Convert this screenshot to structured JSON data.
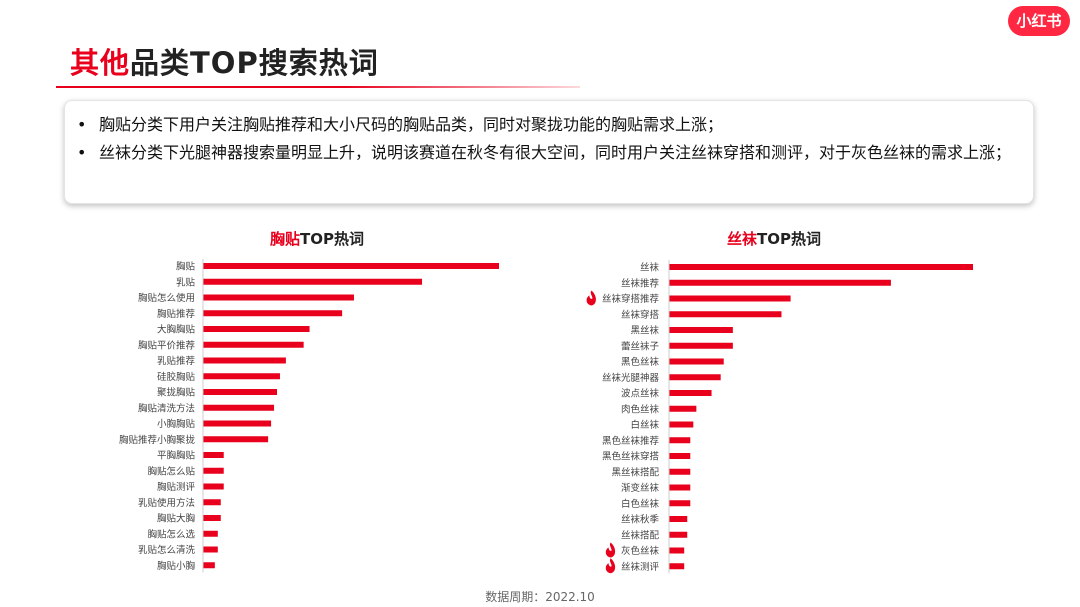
{
  "header": {
    "title_highlight": "其他",
    "title_rest": "品类TOP搜索热词",
    "logo_text": "小红书"
  },
  "summary": {
    "bullets": [
      "胸贴分类下用户关注胸贴推荐和大小尺码的胸贴品类，同时对聚拢功能的胸贴需求上涨；",
      "丝袜分类下光腿神器搜索量明显上升，说明该赛道在秋冬有很大空间，同时用户关注丝袜穿搭和测评，对于灰色丝袜的需求上涨；"
    ]
  },
  "colors": {
    "accent": "#e8001c",
    "bar": "#e8001c"
  },
  "chart_data": [
    {
      "type": "bar",
      "orientation": "horizontal",
      "title_highlight": "胸贴",
      "title_rest": "TOP热词",
      "categories": [
        "胸贴",
        "乳贴",
        "胸贴怎么使用",
        "胸贴推荐",
        "大胸胸贴",
        "胸贴平价推荐",
        "乳贴推荐",
        "硅胶胸贴",
        "聚拢胸贴",
        "胸贴清洗方法",
        "小胸胸贴",
        "胸贴推荐小胸聚拢",
        "平胸胸贴",
        "胸贴怎么贴",
        "胸贴测评",
        "乳贴使用方法",
        "胸贴大胸",
        "胸贴怎么选",
        "乳贴怎么清洗",
        "胸贴小胸"
      ],
      "values": [
        100,
        74,
        51,
        47,
        36,
        34,
        28,
        26,
        25,
        24,
        23,
        22,
        7,
        7,
        7,
        6,
        6,
        5,
        5,
        4
      ],
      "xlim": [
        0,
        100
      ],
      "hot": [],
      "grid": false,
      "xlabel": "",
      "ylabel": ""
    },
    {
      "type": "bar",
      "orientation": "horizontal",
      "title_highlight": "丝袜",
      "title_rest": "TOP热词",
      "categories": [
        "丝袜",
        "丝袜推荐",
        "丝袜穿搭推荐",
        "丝袜穿搭",
        "黑丝袜",
        "蕾丝袜子",
        "黑色丝袜",
        "丝袜光腿神器",
        "波点丝袜",
        "肉色丝袜",
        "白丝袜",
        "黑色丝袜推荐",
        "黑色丝袜穿搭",
        "黑丝袜搭配",
        "渐变丝袜",
        "白色丝袜",
        "丝袜秋季",
        "丝袜搭配",
        "灰色丝袜",
        "丝袜测评"
      ],
      "values": [
        100,
        73,
        40,
        37,
        21,
        21,
        18,
        17,
        14,
        9,
        8,
        7,
        7,
        7,
        7,
        7,
        6,
        6,
        5,
        5
      ],
      "xlim": [
        0,
        100
      ],
      "hot": [
        2,
        18,
        19
      ],
      "grid": false,
      "xlabel": "",
      "ylabel": ""
    }
  ],
  "footer": {
    "text": "数据周期：2022.10"
  }
}
